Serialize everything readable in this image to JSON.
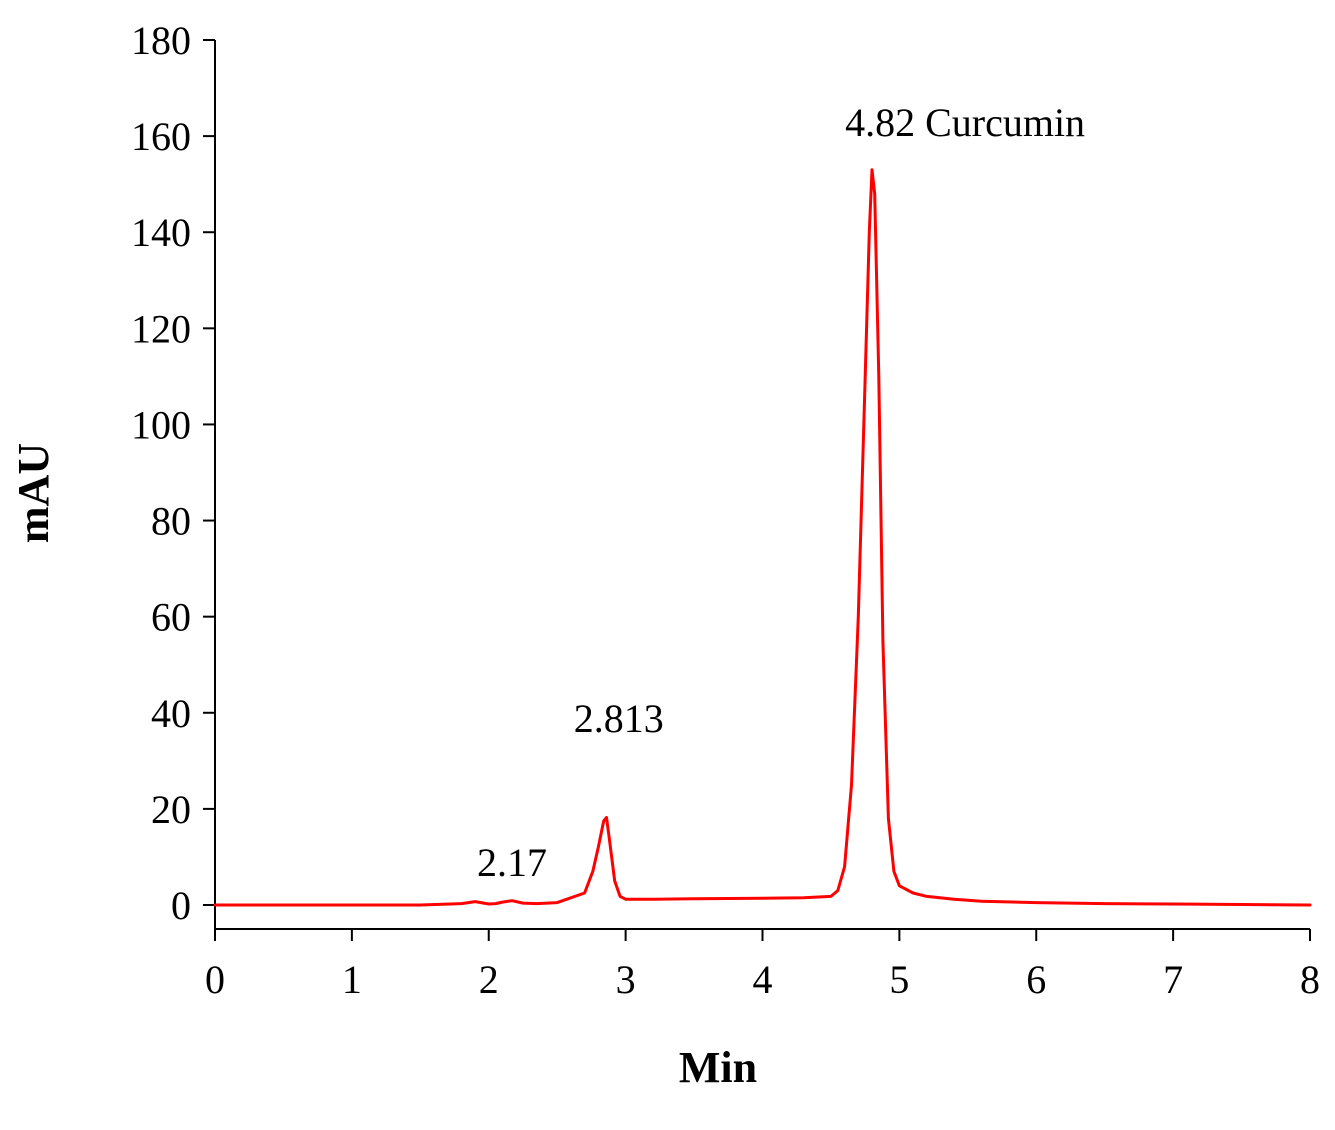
{
  "chart_data": {
    "type": "line",
    "title": "",
    "xlabel": "Min",
    "ylabel": "mAU",
    "xlim": [
      0,
      8
    ],
    "ylim": [
      -5,
      180
    ],
    "x_ticks": [
      "0",
      "1",
      "2",
      "3",
      "4",
      "5",
      "6",
      "7",
      "8"
    ],
    "y_ticks": [
      "0",
      "20",
      "40",
      "60",
      "80",
      "100",
      "120",
      "140",
      "160",
      "180"
    ],
    "grid": false,
    "legend": false,
    "series": [
      {
        "color": "#ff0000",
        "x": [
          0,
          0.5,
          1.0,
          1.5,
          1.8,
          1.9,
          2.0,
          2.05,
          2.1,
          2.17,
          2.25,
          2.35,
          2.5,
          2.7,
          2.76,
          2.8,
          2.84,
          2.86,
          2.88,
          2.92,
          2.96,
          3.0,
          3.2,
          3.5,
          4.0,
          4.3,
          4.5,
          4.55,
          4.6,
          4.65,
          4.7,
          4.75,
          4.78,
          4.8,
          4.82,
          4.85,
          4.88,
          4.92,
          4.96,
          5.0,
          5.1,
          5.2,
          5.4,
          5.6,
          6.0,
          6.5,
          7.0,
          7.5,
          8.0
        ],
        "y": [
          0,
          0,
          0,
          0,
          0.3,
          0.7,
          0.2,
          0.3,
          0.6,
          0.9,
          0.4,
          0.3,
          0.5,
          2.5,
          7,
          12,
          17.5,
          18.2,
          14,
          5,
          1.8,
          1.2,
          1.2,
          1.3,
          1.4,
          1.5,
          1.8,
          3,
          8,
          25,
          60,
          110,
          140,
          153,
          148,
          110,
          55,
          18,
          7,
          4,
          2.5,
          1.8,
          1.2,
          0.8,
          0.5,
          0.3,
          0.2,
          0.1,
          0.0
        ]
      }
    ],
    "annotations": [
      {
        "text": "2.17",
        "x": 2.17,
        "y": 6
      },
      {
        "text": "2.813",
        "x": 2.95,
        "y": 36
      },
      {
        "text": "4.82 Curcumin",
        "x": 5.48,
        "y": 160
      }
    ]
  }
}
